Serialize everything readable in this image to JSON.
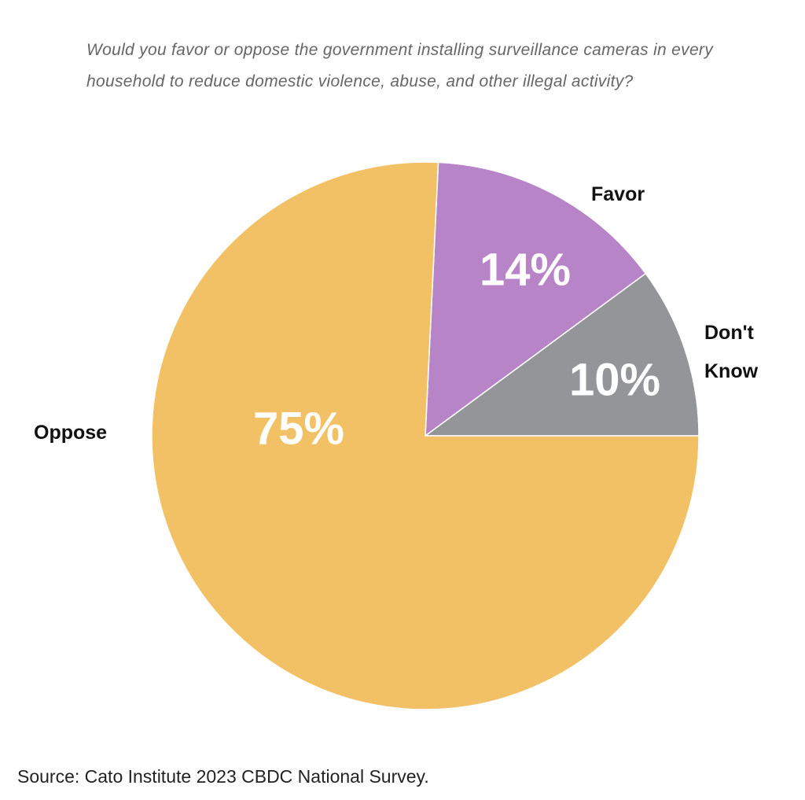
{
  "chart_data": {
    "type": "pie",
    "title": "Would you favor or oppose the government installing surveillance cameras in every household to reduce domestic violence, abuse, and other illegal activity?",
    "categories": [
      "Don't Know",
      "Favor",
      "Oppose"
    ],
    "values": [
      10,
      14,
      75
    ],
    "value_labels": [
      "10%",
      "14%",
      "75%"
    ],
    "colors": [
      "#939598",
      "#b784c8",
      "#f2c166"
    ],
    "source": "Source: Cato Institute 2023 CBDC National Survey."
  }
}
